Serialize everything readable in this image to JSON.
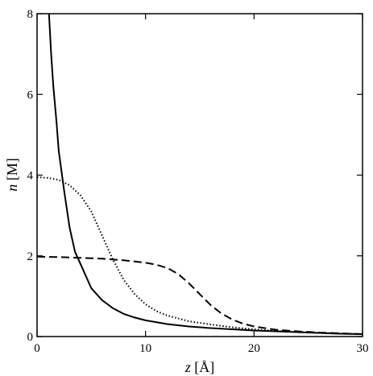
{
  "chart_data": {
    "type": "line",
    "title": "",
    "xlabel": {
      "var": "z",
      "unit": "[Å]"
    },
    "ylabel": {
      "var": "n",
      "unit": "[M]"
    },
    "xlim": [
      0,
      30
    ],
    "ylim": [
      0,
      8
    ],
    "xticks": [
      0,
      10,
      20,
      30
    ],
    "yticks": [
      0,
      2,
      4,
      6,
      8
    ],
    "grid": false,
    "legend": "none",
    "series": [
      {
        "style": "solid",
        "color": "#000000",
        "points": [
          [
            1.1,
            8.0
          ],
          [
            1.3,
            7.0
          ],
          [
            1.5,
            6.2
          ],
          [
            1.8,
            5.3
          ],
          [
            2.0,
            4.6
          ],
          [
            2.5,
            3.6
          ],
          [
            3.0,
            2.7
          ],
          [
            3.5,
            2.1
          ],
          [
            4.0,
            1.8
          ],
          [
            5.0,
            1.2
          ],
          [
            6.0,
            0.9
          ],
          [
            7.0,
            0.7
          ],
          [
            8.0,
            0.56
          ],
          [
            9.0,
            0.47
          ],
          [
            10.0,
            0.4
          ],
          [
            12.0,
            0.31
          ],
          [
            14.0,
            0.25
          ],
          [
            16.0,
            0.21
          ],
          [
            18.0,
            0.18
          ],
          [
            20.0,
            0.15
          ],
          [
            22.0,
            0.13
          ],
          [
            24.0,
            0.11
          ],
          [
            26.0,
            0.09
          ],
          [
            28.0,
            0.07
          ],
          [
            30.0,
            0.06
          ]
        ]
      },
      {
        "style": "dotted",
        "color": "#000000",
        "points": [
          [
            0.0,
            3.95
          ],
          [
            1.0,
            3.93
          ],
          [
            2.0,
            3.88
          ],
          [
            3.0,
            3.75
          ],
          [
            4.0,
            3.5
          ],
          [
            5.0,
            3.1
          ],
          [
            6.0,
            2.5
          ],
          [
            7.0,
            1.9
          ],
          [
            8.0,
            1.4
          ],
          [
            9.0,
            1.05
          ],
          [
            10.0,
            0.8
          ],
          [
            11.0,
            0.63
          ],
          [
            12.0,
            0.52
          ],
          [
            14.0,
            0.38
          ],
          [
            16.0,
            0.3
          ],
          [
            18.0,
            0.23
          ],
          [
            20.0,
            0.18
          ],
          [
            22.0,
            0.14
          ],
          [
            24.0,
            0.11
          ],
          [
            26.0,
            0.09
          ],
          [
            28.0,
            0.07
          ],
          [
            30.0,
            0.06
          ]
        ]
      },
      {
        "style": "dashed",
        "color": "#000000",
        "points": [
          [
            0.0,
            1.98
          ],
          [
            2.0,
            1.97
          ],
          [
            4.0,
            1.95
          ],
          [
            6.0,
            1.93
          ],
          [
            8.0,
            1.89
          ],
          [
            10.0,
            1.83
          ],
          [
            11.0,
            1.78
          ],
          [
            12.0,
            1.7
          ],
          [
            13.0,
            1.55
          ],
          [
            14.0,
            1.32
          ],
          [
            15.0,
            1.05
          ],
          [
            16.0,
            0.78
          ],
          [
            17.0,
            0.57
          ],
          [
            18.0,
            0.42
          ],
          [
            19.0,
            0.32
          ],
          [
            20.0,
            0.25
          ],
          [
            22.0,
            0.17
          ],
          [
            24.0,
            0.13
          ],
          [
            26.0,
            0.1
          ],
          [
            28.0,
            0.08
          ],
          [
            30.0,
            0.06
          ]
        ]
      }
    ]
  }
}
